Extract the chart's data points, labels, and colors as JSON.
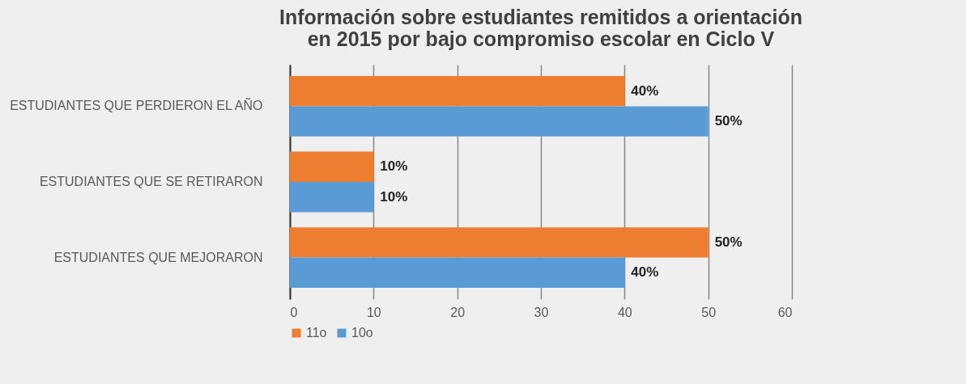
{
  "chart_data": {
    "type": "bar",
    "orientation": "horizontal",
    "title": "Información sobre estudiantes remitidos a orientación\nen 2015 por bajo compromiso escolar en Ciclo V",
    "categories": [
      "ESTUDIANTES QUE PERDIERON EL AÑO",
      "ESTUDIANTES QUE SE RETIRARON",
      "ESTUDIANTES QUE MEJORARON"
    ],
    "series": [
      {
        "name": "11o",
        "color": "#ed7d31",
        "values": [
          40,
          10,
          50
        ],
        "value_labels": [
          "40%",
          "10%",
          "50%"
        ]
      },
      {
        "name": "10o",
        "color": "#5b9bd5",
        "values": [
          50,
          10,
          40
        ],
        "value_labels": [
          "50%",
          "10%",
          "40%"
        ]
      }
    ],
    "xlim": [
      0,
      60
    ],
    "xticks": [
      0,
      10,
      20,
      30,
      40,
      50,
      60
    ],
    "grid": "x",
    "legend": "bottom"
  }
}
